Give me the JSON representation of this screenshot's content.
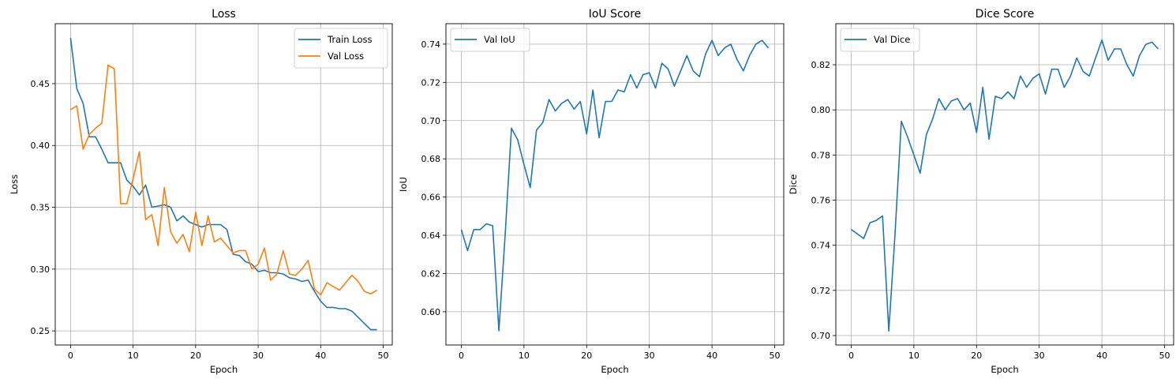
{
  "chart_data": [
    {
      "type": "line",
      "title": "Loss",
      "xlabel": "Epoch",
      "ylabel": "Loss",
      "xlim": [
        -2.45,
        51.45
      ],
      "ylim": [
        0.2386,
        0.4985
      ],
      "xticks": [
        0,
        10,
        20,
        30,
        40,
        50
      ],
      "yticks": [
        0.25,
        0.3,
        0.35,
        0.4,
        0.45
      ],
      "ytick_labels": [
        "0.25",
        "0.30",
        "0.35",
        "0.40",
        "0.45"
      ],
      "grid": true,
      "legend": "upper right",
      "x": [
        0,
        1,
        2,
        3,
        4,
        5,
        6,
        7,
        8,
        9,
        10,
        11,
        12,
        13,
        14,
        15,
        16,
        17,
        18,
        19,
        20,
        21,
        22,
        23,
        24,
        25,
        26,
        27,
        28,
        29,
        30,
        31,
        32,
        33,
        34,
        35,
        36,
        37,
        38,
        39,
        40,
        41,
        42,
        43,
        44,
        45,
        46,
        47,
        48,
        49
      ],
      "series": [
        {
          "name": "Train Loss",
          "color": "#1f77b4",
          "values": [
            0.487,
            0.446,
            0.434,
            0.407,
            0.407,
            0.397,
            0.386,
            0.386,
            0.386,
            0.372,
            0.367,
            0.36,
            0.368,
            0.35,
            0.351,
            0.352,
            0.35,
            0.339,
            0.343,
            0.338,
            0.336,
            0.334,
            0.336,
            0.336,
            0.336,
            0.332,
            0.312,
            0.311,
            0.306,
            0.304,
            0.298,
            0.299,
            0.297,
            0.297,
            0.296,
            0.293,
            0.292,
            0.29,
            0.291,
            0.282,
            0.274,
            0.269,
            0.269,
            0.268,
            0.268,
            0.266,
            0.261,
            0.256,
            0.251,
            0.251
          ]
        },
        {
          "name": "Val Loss",
          "color": "#ff7f0e",
          "values": [
            0.429,
            0.432,
            0.397,
            0.409,
            0.414,
            0.418,
            0.465,
            0.462,
            0.353,
            0.353,
            0.373,
            0.395,
            0.34,
            0.344,
            0.319,
            0.366,
            0.33,
            0.321,
            0.328,
            0.314,
            0.346,
            0.319,
            0.343,
            0.322,
            0.325,
            0.319,
            0.313,
            0.315,
            0.315,
            0.3,
            0.304,
            0.317,
            0.291,
            0.296,
            0.315,
            0.296,
            0.295,
            0.3,
            0.307,
            0.284,
            0.279,
            0.289,
            0.286,
            0.283,
            0.289,
            0.295,
            0.29,
            0.282,
            0.28,
            0.283
          ]
        }
      ]
    },
    {
      "type": "line",
      "title": "IoU Score",
      "xlabel": "Epoch",
      "ylabel": "IoU",
      "xlim": [
        -2.45,
        51.45
      ],
      "ylim": [
        0.5826,
        0.7507
      ],
      "xticks": [
        0,
        10,
        20,
        30,
        40,
        50
      ],
      "yticks": [
        0.6,
        0.62,
        0.64,
        0.66,
        0.68,
        0.7,
        0.72,
        0.74
      ],
      "ytick_labels": [
        "0.60",
        "0.62",
        "0.64",
        "0.66",
        "0.68",
        "0.70",
        "0.72",
        "0.74"
      ],
      "grid": true,
      "legend": "upper left",
      "x": [
        0,
        1,
        2,
        3,
        4,
        5,
        6,
        7,
        8,
        9,
        10,
        11,
        12,
        13,
        14,
        15,
        16,
        17,
        18,
        19,
        20,
        21,
        22,
        23,
        24,
        25,
        26,
        27,
        28,
        29,
        30,
        31,
        32,
        33,
        34,
        35,
        36,
        37,
        38,
        39,
        40,
        41,
        42,
        43,
        44,
        45,
        46,
        47,
        48,
        49
      ],
      "series": [
        {
          "name": "Val IoU",
          "color": "#1f77b4",
          "values": [
            0.643,
            0.632,
            0.643,
            0.643,
            0.646,
            0.645,
            0.59,
            0.64,
            0.696,
            0.69,
            0.677,
            0.665,
            0.695,
            0.699,
            0.711,
            0.705,
            0.709,
            0.711,
            0.706,
            0.71,
            0.693,
            0.716,
            0.691,
            0.71,
            0.71,
            0.716,
            0.715,
            0.724,
            0.717,
            0.724,
            0.725,
            0.717,
            0.73,
            0.727,
            0.718,
            0.726,
            0.734,
            0.726,
            0.723,
            0.735,
            0.742,
            0.734,
            0.738,
            0.74,
            0.732,
            0.726,
            0.734,
            0.74,
            0.742,
            0.738
          ]
        }
      ]
    },
    {
      "type": "line",
      "title": "Dice Score",
      "xlabel": "Epoch",
      "ylabel": "Dice",
      "xlim": [
        -2.45,
        51.45
      ],
      "ylim": [
        0.6958,
        0.8382
      ],
      "xticks": [
        0,
        10,
        20,
        30,
        40,
        50
      ],
      "yticks": [
        0.7,
        0.72,
        0.74,
        0.76,
        0.78,
        0.8,
        0.82
      ],
      "ytick_labels": [
        "0.70",
        "0.72",
        "0.74",
        "0.76",
        "0.78",
        "0.80",
        "0.82"
      ],
      "grid": true,
      "legend": "upper left",
      "x": [
        0,
        1,
        2,
        3,
        4,
        5,
        6,
        7,
        8,
        9,
        10,
        11,
        12,
        13,
        14,
        15,
        16,
        17,
        18,
        19,
        20,
        21,
        22,
        23,
        24,
        25,
        26,
        27,
        28,
        29,
        30,
        31,
        32,
        33,
        34,
        35,
        36,
        37,
        38,
        39,
        40,
        41,
        42,
        43,
        44,
        45,
        46,
        47,
        48,
        49
      ],
      "series": [
        {
          "name": "Val Dice",
          "color": "#1f77b4",
          "values": [
            0.747,
            0.745,
            0.743,
            0.75,
            0.751,
            0.753,
            0.702,
            0.745,
            0.795,
            0.788,
            0.78,
            0.772,
            0.789,
            0.796,
            0.805,
            0.8,
            0.804,
            0.805,
            0.8,
            0.803,
            0.79,
            0.81,
            0.787,
            0.806,
            0.805,
            0.808,
            0.805,
            0.815,
            0.81,
            0.814,
            0.816,
            0.807,
            0.818,
            0.818,
            0.81,
            0.815,
            0.823,
            0.817,
            0.815,
            0.823,
            0.831,
            0.822,
            0.827,
            0.827,
            0.82,
            0.815,
            0.824,
            0.829,
            0.83,
            0.827
          ]
        }
      ]
    }
  ]
}
